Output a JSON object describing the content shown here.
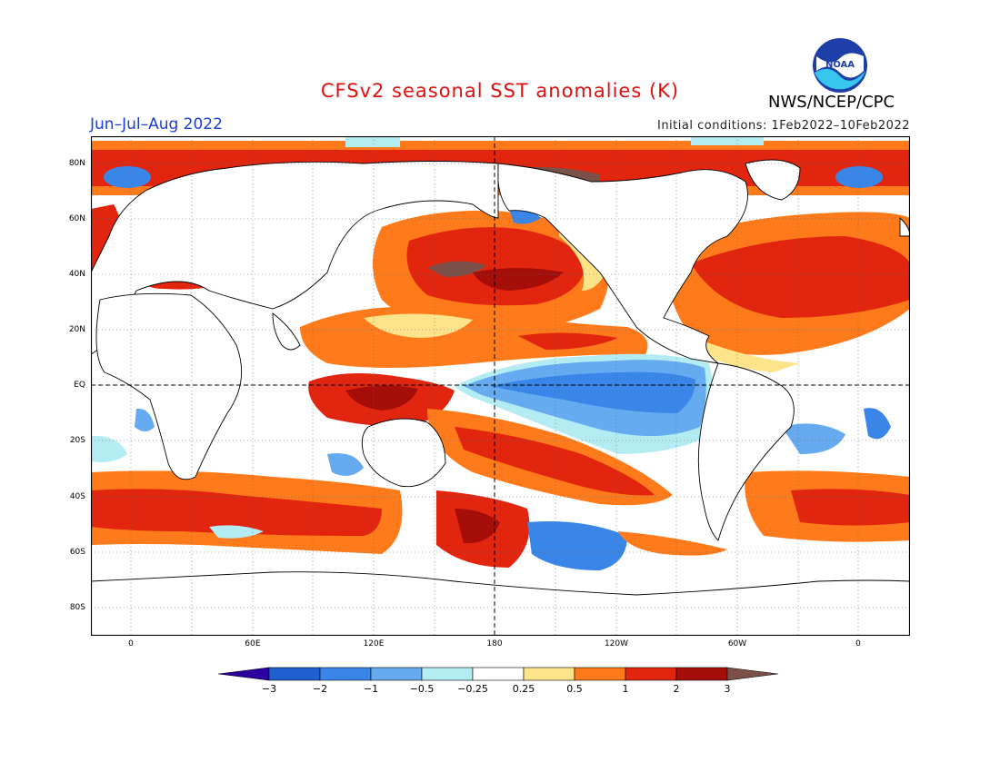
{
  "header": {
    "title": "CFSv2 seasonal SST anomalies (K)",
    "season": "Jun–Jul–Aug 2022",
    "initial_conditions": "Initial conditions: 1Feb2022–10Feb2022",
    "agency": "NWS/NCEP/CPC",
    "logo_text": "NOAA"
  },
  "axes": {
    "lat_labels": [
      "80N",
      "60N",
      "40N",
      "20N",
      "EQ",
      "20S",
      "40S",
      "60S",
      "80S"
    ],
    "lon_labels": [
      "0",
      "60E",
      "120E",
      "180",
      "120W",
      "60W",
      "0"
    ]
  },
  "colorbar": {
    "labels": [
      "−3",
      "−2",
      "−1",
      "−0.5",
      "−0.25",
      "0.25",
      "0.5",
      "1",
      "2",
      "3"
    ],
    "colors": [
      "#2a00a0",
      "#1f5fd0",
      "#3a86e8",
      "#66aaf0",
      "#b4ecf4",
      "#ffffff",
      "#fde48a",
      "#ff7a1a",
      "#e2250e",
      "#a50e08",
      "#7a5048"
    ]
  }
}
